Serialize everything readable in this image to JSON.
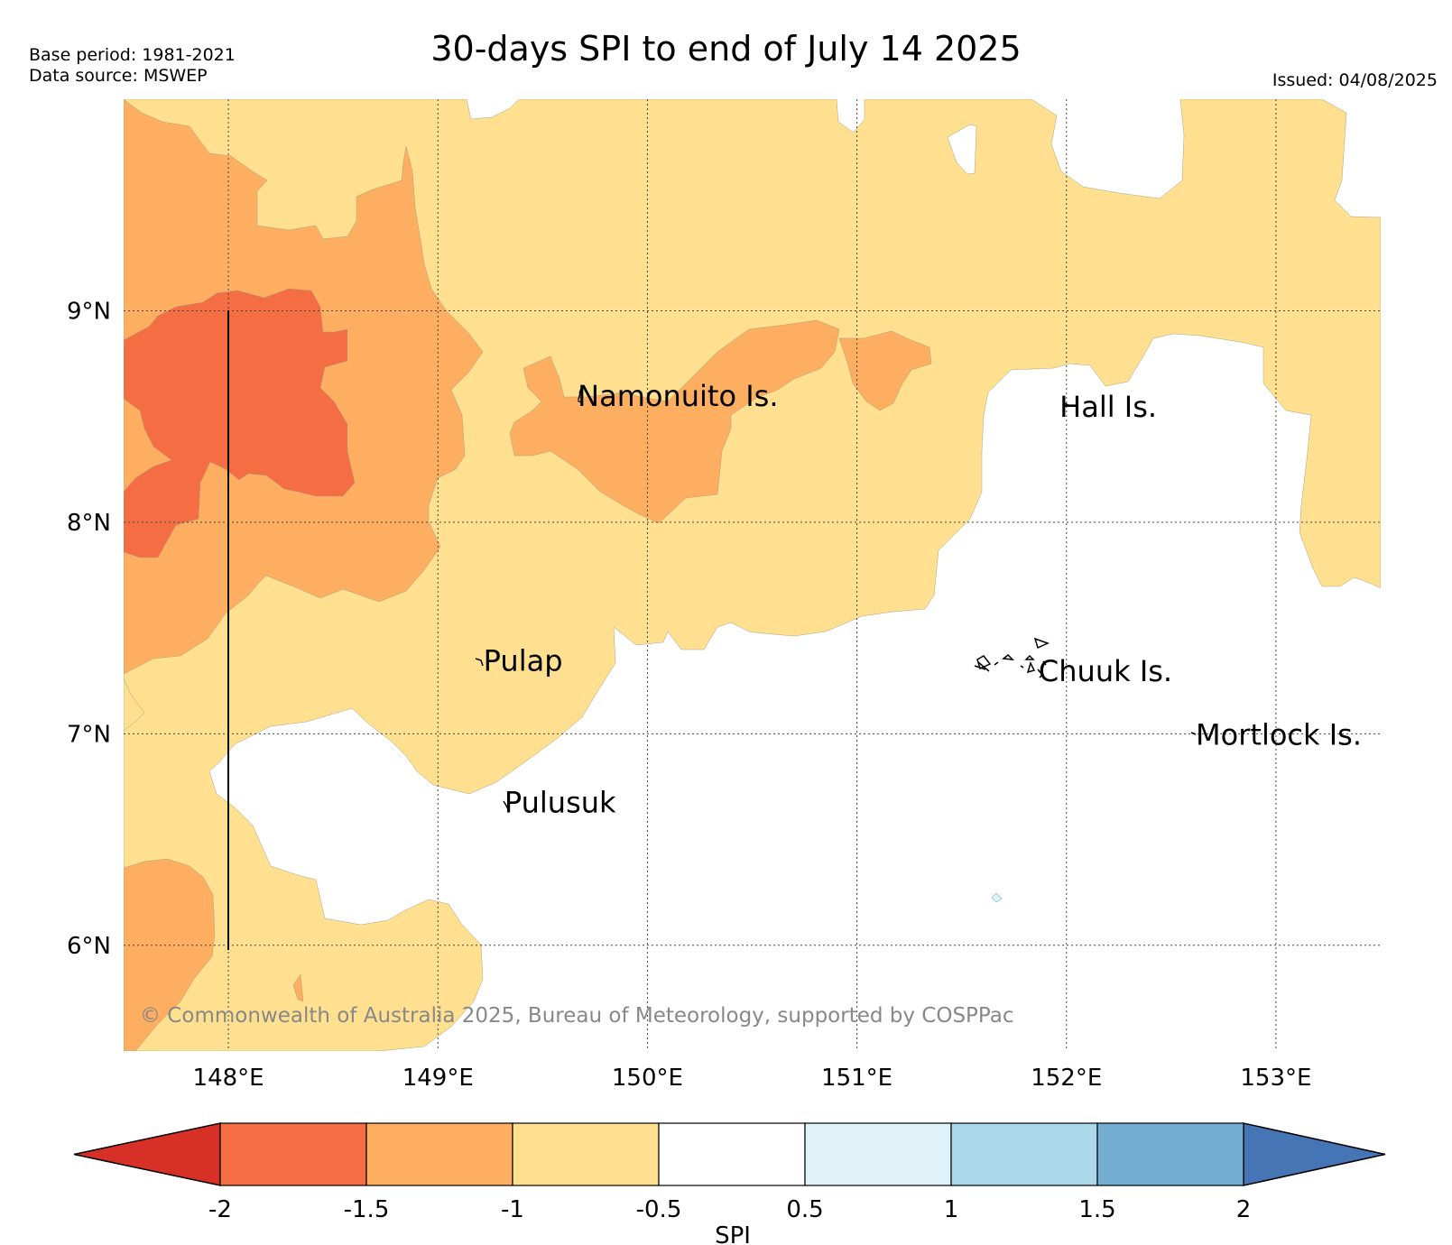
{
  "header": {
    "base_period": "Base period: 1981-2021",
    "data_source": "Data source: MSWEP",
    "title": "30-days SPI to end of July 14 2025",
    "issued": "Issued: 04/08/2025"
  },
  "map": {
    "lon_range": [
      147.5,
      153.5
    ],
    "lat_range": [
      5.5,
      10.0
    ],
    "lat_ticks": [
      {
        "value": 9,
        "label": "9°N"
      },
      {
        "value": 8,
        "label": "8°N"
      },
      {
        "value": 7,
        "label": "7°N"
      },
      {
        "value": 6,
        "label": "6°N"
      }
    ],
    "lon_ticks": [
      {
        "value": 148,
        "label": "148°E"
      },
      {
        "value": 149,
        "label": "149°E"
      },
      {
        "value": 150,
        "label": "150°E"
      },
      {
        "value": 151,
        "label": "151°E"
      },
      {
        "value": 152,
        "label": "152°E"
      },
      {
        "value": 153,
        "label": "153°E"
      }
    ],
    "places": [
      {
        "name": "Namonuito Is.",
        "lon": 149.65,
        "lat": 8.6
      },
      {
        "name": "Hall Is.",
        "lon": 151.95,
        "lat": 8.55
      },
      {
        "name": "Pulap",
        "lon": 149.2,
        "lat": 7.35
      },
      {
        "name": "Chuuk Is.",
        "lon": 151.85,
        "lat": 7.3
      },
      {
        "name": "Mortlock Is.",
        "lon": 152.6,
        "lat": 7.0
      },
      {
        "name": "Pulusuk",
        "lon": 149.3,
        "lat": 6.68
      }
    ],
    "grid": true,
    "copyright": "© Commonwealth of Australia 2025, Bureau of Meteorology, supported by COSPPac"
  },
  "colorbar": {
    "label": "SPI",
    "ticks": [
      "-2",
      "-1.5",
      "-1",
      "-0.5",
      "0.5",
      "1",
      "1.5",
      "2"
    ],
    "colors": {
      "below_-2": "#d73027",
      "-2_to_-1.5": "#f46d43",
      "-1.5_to_-1": "#fdae61",
      "-1_to_-0.5": "#fee090",
      "-0.5_to_0.5": "#ffffff",
      "0.5_to_1": "#e0f3f8",
      "1_to_1.5": "#abd9e9",
      "1.5_to_2": "#74add1",
      "above_2": "#4575b4"
    }
  }
}
